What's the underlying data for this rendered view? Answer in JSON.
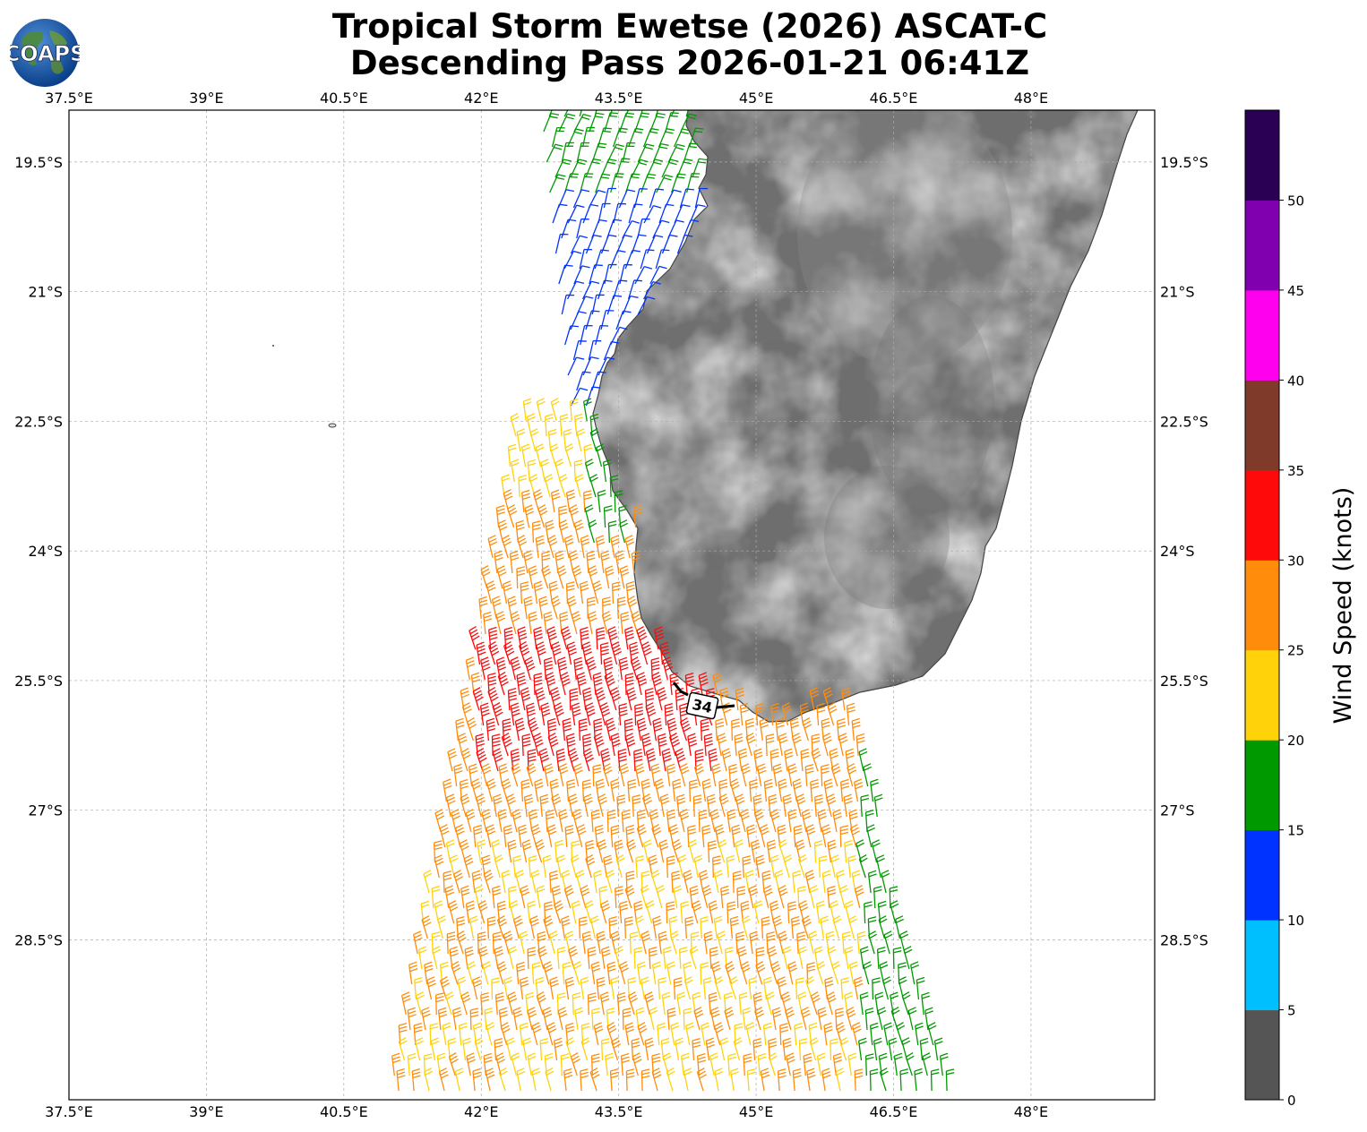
{
  "title_lines": [
    "Tropical Storm Ewetse (2026) ASCAT-C",
    "Descending Pass 2026-01-21 06:41Z"
  ],
  "logo_text": "COAPS",
  "map": {
    "lon_range": [
      37.5,
      49.35
    ],
    "lat_range": [
      -30.35,
      -18.9
    ],
    "lon_ticks": [
      "37.5°E",
      "39°E",
      "40.5°E",
      "42°E",
      "43.5°E",
      "45°E",
      "46.5°E",
      "48°E"
    ],
    "lat_ticks": [
      "19.5°S",
      "21°S",
      "22.5°S",
      "24°S",
      "25.5°S",
      "27°S",
      "28.5°S"
    ],
    "contour_label": "34"
  },
  "colorbar": {
    "label": "Wind Speed (knots)",
    "ticks": [
      "0",
      "5",
      "10",
      "15",
      "20",
      "25",
      "30",
      "35",
      "40",
      "45",
      "50"
    ],
    "bins": [
      {
        "range": "0-5",
        "color": "#555555"
      },
      {
        "range": "5-10",
        "color": "#00bfff"
      },
      {
        "range": "10-15",
        "color": "#0033ff"
      },
      {
        "range": "15-20",
        "color": "#009900"
      },
      {
        "range": "20-25",
        "color": "#ffd20a"
      },
      {
        "range": "25-30",
        "color": "#ff8c0a"
      },
      {
        "range": "30-35",
        "color": "#ff0a0a"
      },
      {
        "range": "35-40",
        "color": "#7f3a2a"
      },
      {
        "range": "40-45",
        "color": "#ff00ee"
      },
      {
        "range": "45-50",
        "color": "#8000b0"
      },
      {
        "range": "50+",
        "color": "#2a0055"
      }
    ]
  }
}
